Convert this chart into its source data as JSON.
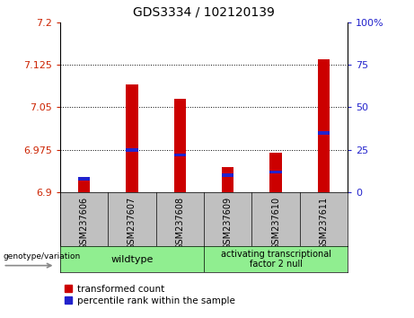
{
  "title": "GDS3334 / 102120139",
  "samples": [
    "GSM237606",
    "GSM237607",
    "GSM237608",
    "GSM237609",
    "GSM237610",
    "GSM237611"
  ],
  "baseline": 6.9,
  "ylim_left": [
    6.9,
    7.2
  ],
  "ylim_right": [
    0,
    100
  ],
  "transformed_counts": [
    6.925,
    7.09,
    7.065,
    6.945,
    6.97,
    7.135
  ],
  "percentile_ranks": [
    8,
    25,
    22,
    10,
    12,
    35
  ],
  "red_color": "#CC0000",
  "blue_color": "#2222CC",
  "red_bar_width": 0.25,
  "blue_bar_width": 0.25,
  "blue_bar_height": 0.006,
  "grid_values": [
    7.125,
    7.05,
    6.975
  ],
  "left_yticks": [
    6.9,
    6.975,
    7.05,
    7.125,
    7.2
  ],
  "right_yticks": [
    0,
    25,
    50,
    75,
    100
  ],
  "left_tick_color": "#CC2200",
  "right_tick_color": "#2222CC",
  "bg_plot": "#FFFFFF",
  "bg_label_area": "#C0C0C0",
  "bg_group_area": "#90EE90",
  "legend_red_label": "transformed count",
  "legend_blue_label": "percentile rank within the sample",
  "group1_label": "wildtype",
  "group2_label": "activating transcriptional\nfactor 2 null",
  "genotype_label": "genotype/variation"
}
